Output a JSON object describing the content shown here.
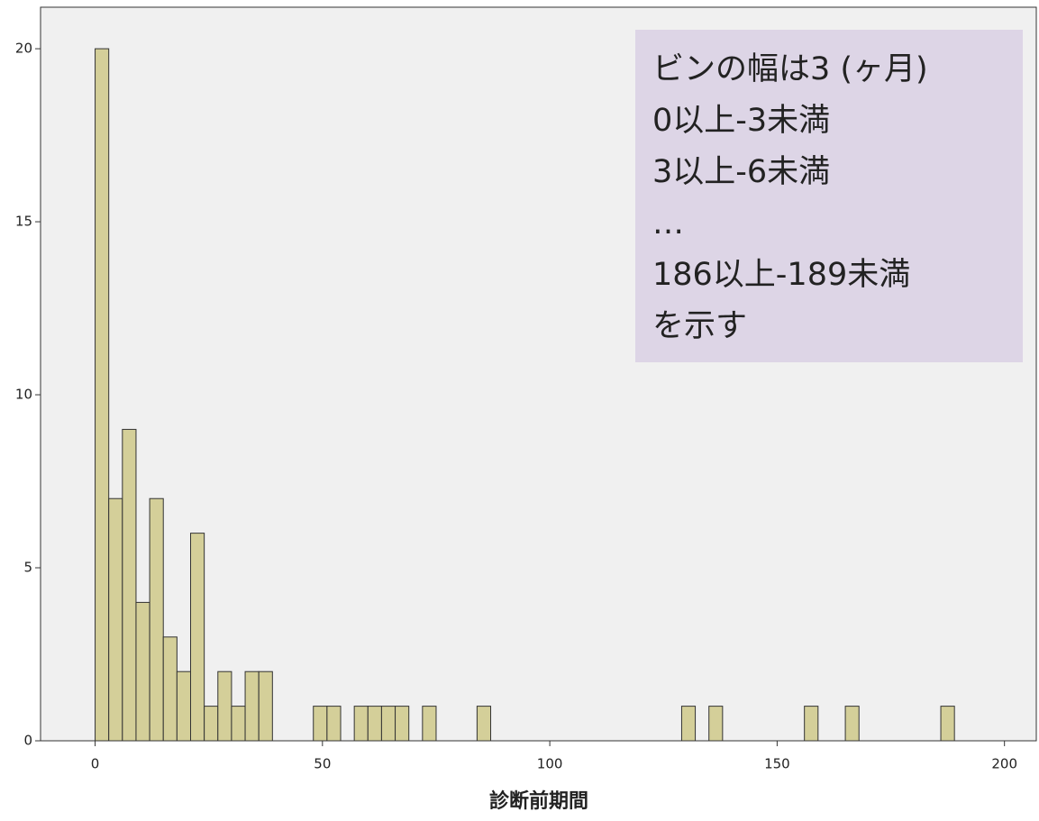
{
  "chart_data": {
    "type": "histogram",
    "x_label": "診断前期間",
    "bins": [
      0,
      3,
      6,
      9,
      12,
      15,
      18,
      21,
      24,
      27,
      30,
      33,
      36,
      39,
      42,
      45,
      48,
      51,
      54,
      57,
      60,
      63,
      66,
      69,
      72,
      75,
      78,
      81,
      84,
      87,
      90,
      93,
      96,
      99,
      102,
      105,
      108,
      111,
      114,
      117,
      120,
      123,
      126,
      129,
      132,
      135,
      138,
      141,
      144,
      147,
      150,
      153,
      156,
      159,
      162,
      165,
      168,
      171,
      174,
      177,
      180,
      183,
      186,
      189
    ],
    "values": [
      20,
      7,
      9,
      4,
      7,
      3,
      2,
      6,
      1,
      2,
      1,
      2,
      2,
      0,
      0,
      0,
      1,
      1,
      0,
      1,
      1,
      1,
      1,
      0,
      1,
      0,
      0,
      0,
      1,
      0,
      0,
      0,
      0,
      0,
      0,
      0,
      0,
      0,
      0,
      0,
      0,
      0,
      0,
      1,
      0,
      1,
      0,
      0,
      0,
      0,
      0,
      0,
      1,
      0,
      0,
      1,
      0,
      0,
      0,
      0,
      0,
      0,
      1
    ],
    "color": "#d4cf99",
    "xlim": [
      -12,
      207
    ],
    "ylim": [
      0,
      21.2
    ],
    "xticks": [
      0,
      50,
      100,
      150,
      200
    ],
    "yticks": [
      0,
      5,
      10,
      15,
      20
    ],
    "annotation": [
      "ビンの幅は3 (ヶ月)",
      "0以上-3未満",
      "3以上-6未満",
      "…",
      "186以上-189未満",
      "を示す"
    ]
  }
}
